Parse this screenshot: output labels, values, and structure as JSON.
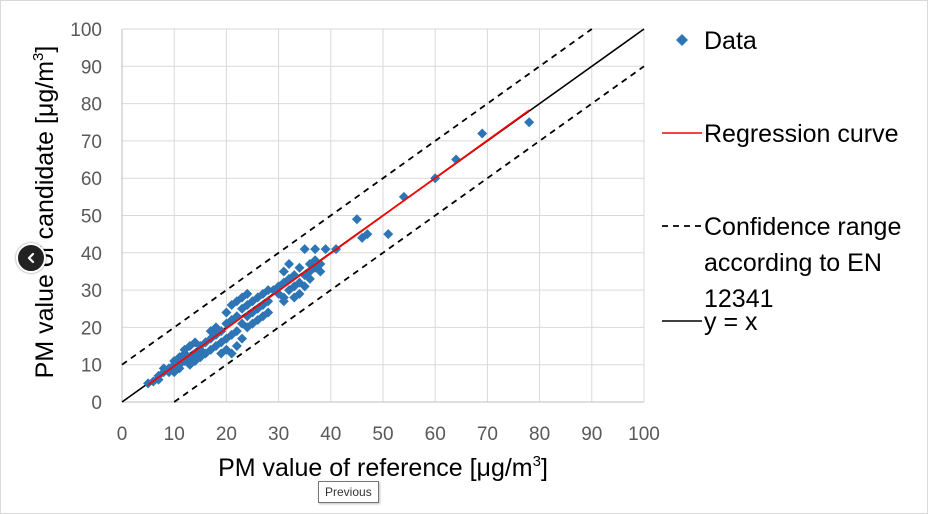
{
  "chart_data": {
    "type": "scatter",
    "title": "",
    "xlabel": "PM value of reference [μg/m",
    "xlabel_sup": "3",
    "xlabel_end": "]",
    "ylabel": "PM value of candidate [μg/m",
    "ylabel_sup": "3",
    "ylabel_end": "]",
    "xlim": [
      0,
      100
    ],
    "ylim": [
      0,
      100
    ],
    "xticks": [
      "0",
      "10",
      "20",
      "30",
      "40",
      "50",
      "60",
      "70",
      "80",
      "90",
      "100"
    ],
    "yticks": [
      "0",
      "10",
      "20",
      "30",
      "40",
      "50",
      "60",
      "70",
      "80",
      "90",
      "100"
    ],
    "grid": true,
    "legend_position": "right",
    "legend": [
      {
        "label": "Data"
      },
      {
        "label": "Regression curve"
      },
      {
        "label_lines": [
          "Confidence range",
          "according to EN",
          "12341"
        ]
      },
      {
        "label": "y = x"
      }
    ],
    "series": [
      {
        "name": "Data",
        "marker": "diamond",
        "color": "#2e75b6",
        "points": [
          [
            5,
            5
          ],
          [
            6,
            5.5
          ],
          [
            7,
            6
          ],
          [
            7,
            7
          ],
          [
            8,
            8
          ],
          [
            8,
            9
          ],
          [
            9,
            8
          ],
          [
            9,
            9
          ],
          [
            10,
            8
          ],
          [
            10,
            10
          ],
          [
            10,
            11
          ],
          [
            11,
            9
          ],
          [
            11,
            10
          ],
          [
            11,
            12
          ],
          [
            12,
            11
          ],
          [
            12,
            13
          ],
          [
            12,
            14
          ],
          [
            13,
            10
          ],
          [
            13,
            12
          ],
          [
            13,
            15
          ],
          [
            14,
            11
          ],
          [
            14,
            13
          ],
          [
            14,
            16
          ],
          [
            15,
            12
          ],
          [
            15,
            14
          ],
          [
            15,
            15
          ],
          [
            16,
            13
          ],
          [
            16,
            16
          ],
          [
            17,
            14
          ],
          [
            17,
            17
          ],
          [
            17,
            19
          ],
          [
            18,
            15
          ],
          [
            18,
            18
          ],
          [
            18,
            20
          ],
          [
            19,
            13
          ],
          [
            19,
            16
          ],
          [
            19,
            19
          ],
          [
            20,
            14
          ],
          [
            20,
            17
          ],
          [
            20,
            21
          ],
          [
            20,
            24
          ],
          [
            21,
            13
          ],
          [
            21,
            18
          ],
          [
            21,
            22
          ],
          [
            21,
            26
          ],
          [
            22,
            15
          ],
          [
            22,
            19
          ],
          [
            22,
            23
          ],
          [
            22,
            27
          ],
          [
            23,
            17
          ],
          [
            23,
            21
          ],
          [
            23,
            25
          ],
          [
            23,
            28
          ],
          [
            24,
            20
          ],
          [
            24,
            23
          ],
          [
            24,
            26
          ],
          [
            24,
            29
          ],
          [
            25,
            21
          ],
          [
            25,
            24
          ],
          [
            25,
            27
          ],
          [
            26,
            22
          ],
          [
            26,
            25
          ],
          [
            26,
            28
          ],
          [
            27,
            23
          ],
          [
            27,
            26
          ],
          [
            27,
            29
          ],
          [
            28,
            24
          ],
          [
            28,
            27
          ],
          [
            28,
            30
          ],
          [
            29,
            30
          ],
          [
            30,
            29
          ],
          [
            30,
            31
          ],
          [
            31,
            27
          ],
          [
            31,
            28
          ],
          [
            31,
            32
          ],
          [
            31,
            35
          ],
          [
            32,
            30
          ],
          [
            32,
            33
          ],
          [
            32,
            37
          ],
          [
            33,
            28
          ],
          [
            33,
            31
          ],
          [
            33,
            34
          ],
          [
            34,
            29
          ],
          [
            34,
            32
          ],
          [
            34,
            36
          ],
          [
            35,
            31
          ],
          [
            35,
            34
          ],
          [
            35,
            41
          ],
          [
            36,
            33
          ],
          [
            36,
            35
          ],
          [
            36,
            37
          ],
          [
            37,
            36
          ],
          [
            37,
            38
          ],
          [
            37,
            41
          ],
          [
            38,
            35
          ],
          [
            38,
            37
          ],
          [
            39,
            41
          ],
          [
            41,
            41
          ],
          [
            45,
            49
          ],
          [
            46,
            44
          ],
          [
            47,
            45
          ],
          [
            51,
            45
          ],
          [
            54,
            55
          ],
          [
            60,
            60
          ],
          [
            64,
            65
          ],
          [
            69,
            72
          ],
          [
            78,
            75
          ]
        ]
      },
      {
        "name": "Regression curve",
        "type": "line",
        "color": "#ff0000",
        "x": [
          5,
          78
        ],
        "y": [
          4.6,
          78.2
        ]
      },
      {
        "name": "Confidence range according to EN 12341",
        "type": "line",
        "style": "dashed",
        "color": "#000000",
        "upper": {
          "x": [
            0,
            90
          ],
          "y": [
            10,
            100
          ]
        },
        "lower": {
          "x": [
            10,
            100
          ],
          "y": [
            0,
            90
          ]
        }
      },
      {
        "name": "y = x",
        "type": "line",
        "color": "#000000",
        "x": [
          0,
          100
        ],
        "y": [
          0,
          100
        ]
      }
    ]
  },
  "ui": {
    "prev_tooltip": "Previous"
  }
}
